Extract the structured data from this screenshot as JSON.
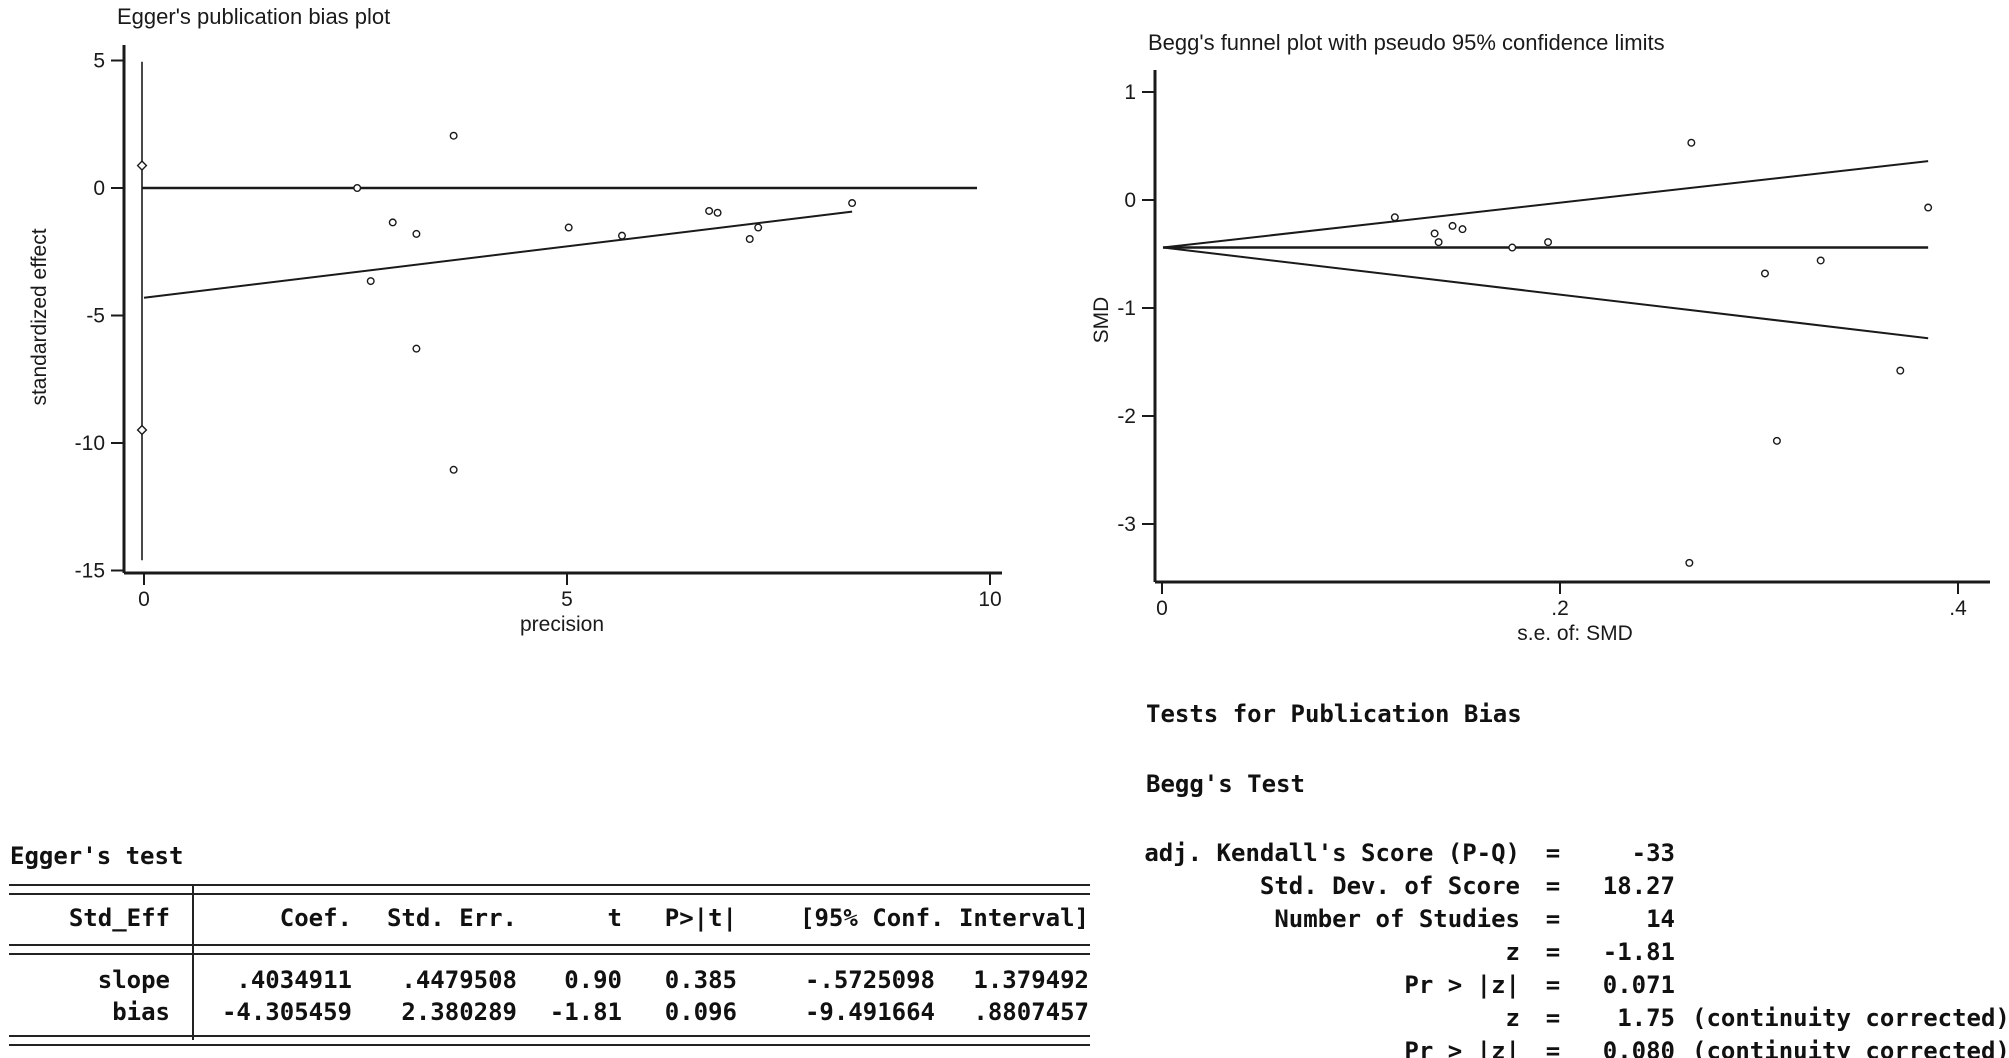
{
  "colors": {
    "ink": "#1a1a1a",
    "background": "#ffffff"
  },
  "chart_data": [
    {
      "type": "scatter",
      "name": "egger-publication-bias-plot",
      "title": "Egger's publication bias plot",
      "xlabel": "precision",
      "ylabel": "standardized effect",
      "xlim": [
        0,
        10
      ],
      "ylim": [
        -15,
        5
      ],
      "xticks": [
        0,
        5,
        10
      ],
      "yticks": [
        5,
        0,
        -5,
        -10,
        -15
      ],
      "grid": false,
      "points": [
        [
          3.66,
          2.05
        ],
        [
          2.52,
          0.0
        ],
        [
          8.37,
          -0.59
        ],
        [
          6.68,
          -0.9
        ],
        [
          6.78,
          -0.97
        ],
        [
          7.26,
          -1.55
        ],
        [
          7.16,
          -2.0
        ],
        [
          5.65,
          -1.87
        ],
        [
          5.02,
          -1.55
        ],
        [
          2.94,
          -1.35
        ],
        [
          3.22,
          -1.8
        ],
        [
          2.68,
          -3.65
        ],
        [
          3.22,
          -6.3
        ],
        [
          3.66,
          -11.05
        ]
      ],
      "zero_line_y": 0,
      "regression": {
        "intercept": -4.305459,
        "slope": 0.4034911,
        "x_start": 0,
        "x_end": 8.37
      },
      "bias_ci_marker_line": {
        "x": 0.0,
        "upper_marker": 0.88,
        "lower_marker": -9.49,
        "line_top": 4.95,
        "line_bottom": -14.6
      }
    },
    {
      "type": "scatter",
      "name": "begg-funnel-plot",
      "title": "Begg's funnel plot with pseudo 95% confidence limits",
      "xlabel": "s.e. of: SMD",
      "ylabel": "SMD",
      "xlim": [
        0,
        0.4
      ],
      "ylim": [
        -3.5,
        1
      ],
      "xticks": [
        {
          "v": 0,
          "label": "0"
        },
        {
          "v": 0.2,
          "label": ".2"
        },
        {
          "v": 0.4,
          "label": ".4"
        }
      ],
      "yticks": [
        1,
        0,
        -1,
        -2,
        -3
      ],
      "grid": false,
      "pooled_smd": -0.44,
      "funnel_se_end": 0.385,
      "funnel_upper_end_smd": 0.36,
      "funnel_lower_end_smd": -1.28,
      "points": [
        [
          0.266,
          0.53
        ],
        [
          0.385,
          -0.07
        ],
        [
          0.117,
          -0.16
        ],
        [
          0.146,
          -0.24
        ],
        [
          0.151,
          -0.27
        ],
        [
          0.137,
          -0.31
        ],
        [
          0.139,
          -0.39
        ],
        [
          0.176,
          -0.44
        ],
        [
          0.194,
          -0.39
        ],
        [
          0.331,
          -0.56
        ],
        [
          0.303,
          -0.68
        ],
        [
          0.371,
          -1.58
        ],
        [
          0.309,
          -2.23
        ],
        [
          0.265,
          -3.36
        ]
      ]
    }
  ],
  "egger_test": {
    "heading": "Egger's test",
    "columns": [
      "Std_Eff",
      "Coef.",
      "Std. Err.",
      "t",
      "P>|t|",
      "[95% Conf. Interval]"
    ],
    "rows": [
      {
        "name": "slope",
        "coef": ".4034911",
        "std_err": ".4479508",
        "t": "0.90",
        "p": "0.385",
        "ci_low": "-.5725098",
        "ci_high": "1.379492"
      },
      {
        "name": "bias",
        "coef": "-4.305459",
        "std_err": "2.380289",
        "t": "-1.81",
        "p": "0.096",
        "ci_low": "-9.491664",
        "ci_high": ".8807457"
      }
    ]
  },
  "begg_test": {
    "section_heading": "Tests for Publication Bias",
    "heading": "Begg's Test",
    "rows": [
      {
        "label": "adj. Kendall's Score (P-Q)",
        "value": "-33",
        "note": ""
      },
      {
        "label": "Std. Dev. of Score",
        "value": "18.27",
        "note": ""
      },
      {
        "label": "Number of Studies",
        "value": "14",
        "note": ""
      },
      {
        "label": "z",
        "value": "-1.81",
        "note": ""
      },
      {
        "label": "Pr > |z|",
        "value": "0.071",
        "note": ""
      },
      {
        "label": "z",
        "value": "1.75",
        "note": "(continuity corrected)"
      },
      {
        "label": "Pr > |z|",
        "value": "0.080",
        "note": "(continuity corrected)"
      }
    ]
  }
}
